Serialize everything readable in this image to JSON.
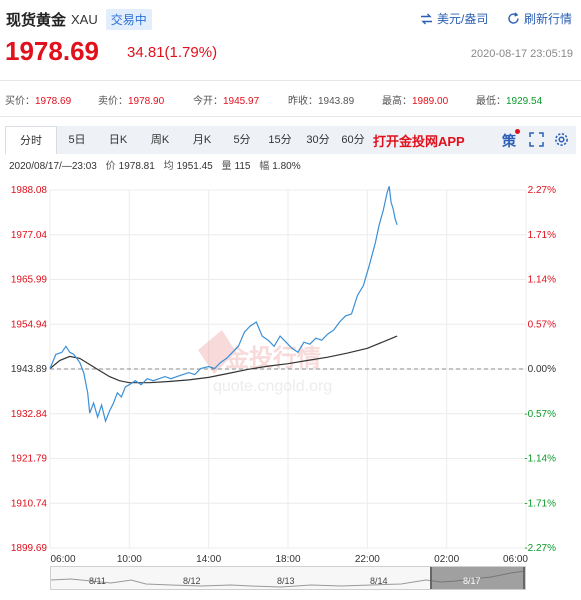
{
  "header": {
    "name": "现货黄金",
    "code": "XAU",
    "status": "交易中",
    "currency_btn": "美元/盎司",
    "refresh_btn": "刷新行情"
  },
  "price": {
    "last": "1978.69",
    "change": "34.81(1.79%)",
    "timestamp": "2020-08-17 23:05:19"
  },
  "quotes": [
    {
      "label": "买价：",
      "value": "1978.69",
      "color": "red"
    },
    {
      "label": "卖价：",
      "value": "1978.90",
      "color": "red"
    },
    {
      "label": "今开：",
      "value": "1945.97",
      "color": "red"
    },
    {
      "label": "昨收：",
      "value": "1943.89",
      "color": "normal"
    },
    {
      "label": "最高：",
      "value": "1989.00",
      "color": "red"
    },
    {
      "label": "最低：",
      "value": "1929.54",
      "color": "green"
    }
  ],
  "tabs": [
    {
      "label": "分时",
      "active": true
    },
    {
      "label": "5日",
      "active": false
    },
    {
      "label": "日K",
      "active": false
    },
    {
      "label": "周K",
      "active": false
    },
    {
      "label": "月K",
      "active": false
    },
    {
      "label": "5分",
      "active": false
    },
    {
      "label": "15分",
      "active": false
    },
    {
      "label": "30分",
      "active": false
    },
    {
      "label": "60分",
      "active": false
    }
  ],
  "promo": "打开金投网APP",
  "toolbar_icon_text": "策",
  "info_bar": {
    "time": "2020/08/17/—23:03",
    "price_label": "价",
    "price": "1978.81",
    "avg_label": "均",
    "avg": "1951.45",
    "vol_label": "量",
    "vol": "115",
    "amp_label": "幅",
    "amp": "1.80%"
  },
  "watermark": {
    "brand": "金投行情",
    "url": "quote.cngold.org"
  },
  "colors": {
    "up": "#e0101c",
    "down": "#0a9a2a",
    "price_line": "#3b8fd6",
    "avg_line": "#333333",
    "accent": "#2a6fd6"
  },
  "chart_data": {
    "type": "line",
    "y_ticks_left": [
      "1988.08",
      "1977.04",
      "1965.99",
      "1954.94",
      "1943.89",
      "1932.84",
      "1921.79",
      "1910.74",
      "1899.69"
    ],
    "y_ticks_right": [
      "2.27%",
      "1.71%",
      "1.14%",
      "0.57%",
      "0.00%",
      "-0.57%",
      "-1.14%",
      "-1.71%",
      "-2.27%"
    ],
    "ylim": [
      1899.69,
      1988.08
    ],
    "prev_close": 1943.89,
    "x_ticks": [
      "06:00",
      "10:00",
      "14:00",
      "18:00",
      "22:00",
      "02:00",
      "06:00"
    ],
    "xlim_hours": [
      6,
      30
    ],
    "series": [
      {
        "values_price": [
          [
            6.0,
            1944.0
          ],
          [
            6.3,
            1947.5
          ],
          [
            6.6,
            1948.0
          ],
          [
            6.8,
            1949.5
          ],
          [
            7.0,
            1948.0
          ],
          [
            7.2,
            1947.5
          ],
          [
            7.5,
            1945.5
          ],
          [
            7.7,
            1943.0
          ],
          [
            7.9,
            1938.0
          ],
          [
            8.0,
            1933.0
          ],
          [
            8.2,
            1935.5
          ],
          [
            8.4,
            1932.0
          ],
          [
            8.6,
            1935.0
          ],
          [
            8.8,
            1931.0
          ],
          [
            9.0,
            1933.5
          ],
          [
            9.2,
            1935.5
          ],
          [
            9.4,
            1938.0
          ],
          [
            9.6,
            1937.0
          ],
          [
            9.8,
            1939.5
          ],
          [
            10.0,
            1940.0
          ],
          [
            10.3,
            1941.0
          ],
          [
            10.6,
            1940.0
          ],
          [
            10.9,
            1941.5
          ],
          [
            11.2,
            1941.0
          ],
          [
            11.5,
            1941.5
          ],
          [
            11.8,
            1942.0
          ],
          [
            12.1,
            1941.5
          ],
          [
            12.4,
            1942.0
          ],
          [
            12.7,
            1942.5
          ],
          [
            13.0,
            1943.0
          ],
          [
            13.3,
            1942.5
          ],
          [
            13.6,
            1944.0
          ],
          [
            14.0,
            1944.5
          ],
          [
            14.3,
            1944.0
          ],
          [
            14.6,
            1945.5
          ],
          [
            14.9,
            1946.5
          ],
          [
            15.2,
            1948.0
          ],
          [
            15.5,
            1949.5
          ],
          [
            15.8,
            1953.0
          ],
          [
            16.1,
            1954.5
          ],
          [
            16.4,
            1955.5
          ],
          [
            16.7,
            1952.0
          ],
          [
            17.0,
            1951.0
          ],
          [
            17.3,
            1949.5
          ],
          [
            17.6,
            1952.0
          ],
          [
            17.9,
            1950.5
          ],
          [
            18.2,
            1949.0
          ],
          [
            18.5,
            1948.0
          ],
          [
            18.8,
            1950.5
          ],
          [
            19.1,
            1950.0
          ],
          [
            19.4,
            1951.5
          ],
          [
            19.7,
            1951.0
          ],
          [
            20.0,
            1952.5
          ],
          [
            20.3,
            1953.5
          ],
          [
            20.6,
            1955.5
          ],
          [
            20.9,
            1957.0
          ],
          [
            21.2,
            1957.5
          ],
          [
            21.5,
            1962.0
          ],
          [
            21.8,
            1964.5
          ],
          [
            22.1,
            1969.5
          ],
          [
            22.4,
            1975.0
          ],
          [
            22.6,
            1979.5
          ],
          [
            22.8,
            1983.0
          ],
          [
            23.0,
            1987.5
          ],
          [
            23.1,
            1989.0
          ],
          [
            23.2,
            1985.0
          ],
          [
            23.3,
            1983.5
          ],
          [
            23.4,
            1981.0
          ],
          [
            23.5,
            1979.5
          ]
        ],
        "values_avg": [
          [
            6.0,
            1944.0
          ],
          [
            6.5,
            1946.0
          ],
          [
            7.0,
            1947.0
          ],
          [
            7.5,
            1946.5
          ],
          [
            8.0,
            1945.0
          ],
          [
            8.5,
            1943.5
          ],
          [
            9.0,
            1942.0
          ],
          [
            9.5,
            1941.0
          ],
          [
            10.0,
            1940.5
          ],
          [
            11.0,
            1940.5
          ],
          [
            12.0,
            1940.8
          ],
          [
            13.0,
            1941.2
          ],
          [
            14.0,
            1941.8
          ],
          [
            15.0,
            1942.8
          ],
          [
            16.0,
            1943.8
          ],
          [
            17.0,
            1944.6
          ],
          [
            18.0,
            1945.2
          ],
          [
            19.0,
            1946.0
          ],
          [
            20.0,
            1946.8
          ],
          [
            21.0,
            1947.8
          ],
          [
            22.0,
            1949.0
          ],
          [
            23.0,
            1951.0
          ],
          [
            23.5,
            1952.0
          ]
        ]
      }
    ],
    "navigator": {
      "labels": [
        "8/11",
        "8/12",
        "8/13",
        "8/14",
        "8/17"
      ]
    }
  }
}
